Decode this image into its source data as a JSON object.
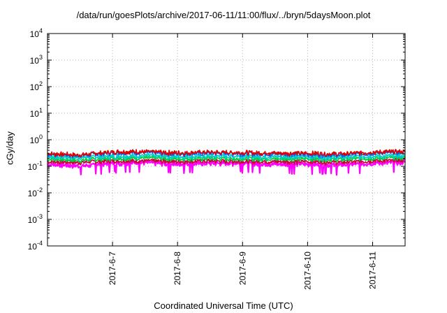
{
  "chart_data": {
    "type": "line",
    "title": "/data/run/goesPlots/archive/2017-06-11/11:00/flux/../bryn/5daysMoon.plot",
    "xlabel": "Coordinated Universal Time (UTC)",
    "ylabel": "cGy/day",
    "yscale": "log",
    "ylim": [
      0.0001,
      10000
    ],
    "y_ticks": [
      {
        "base": "10",
        "exp": "-4"
      },
      {
        "base": "10",
        "exp": "-3"
      },
      {
        "base": "10",
        "exp": "-2"
      },
      {
        "base": "10",
        "exp": "-1"
      },
      {
        "base": "10",
        "exp": "0"
      },
      {
        "base": "10",
        "exp": "1"
      },
      {
        "base": "10",
        "exp": "2"
      },
      {
        "base": "10",
        "exp": "3"
      },
      {
        "base": "10",
        "exp": "4"
      }
    ],
    "xlim": [
      "2017-06-06T00:00",
      "2017-06-11T12:00"
    ],
    "x_ticks": [
      "2017-6-7",
      "2017-6-8",
      "2017-6-9",
      "2017-6-10",
      "2017-6-11"
    ],
    "grid": true,
    "series": [
      {
        "color": "#ff00ff",
        "level": 0.13,
        "x": [
          "2017-06-06T00:00",
          "2017-06-06T12:00",
          "2017-06-07T00:00",
          "2017-06-07T12:00",
          "2017-06-08T00:00",
          "2017-06-08T12:00",
          "2017-06-09T00:00",
          "2017-06-09T12:00",
          "2017-06-10T00:00",
          "2017-06-10T12:00",
          "2017-06-11T00:00",
          "2017-06-11T12:00"
        ],
        "values": [
          0.12,
          0.1,
          0.13,
          0.14,
          0.12,
          0.13,
          0.13,
          0.12,
          0.12,
          0.11,
          0.13,
          0.14
        ]
      },
      {
        "color": "#cc0033",
        "level": 0.15,
        "x": [
          "2017-06-06T00:00",
          "2017-06-06T12:00",
          "2017-06-07T00:00",
          "2017-06-07T12:00",
          "2017-06-08T00:00",
          "2017-06-08T12:00",
          "2017-06-09T00:00",
          "2017-06-09T12:00",
          "2017-06-10T00:00",
          "2017-06-10T12:00",
          "2017-06-11T00:00",
          "2017-06-11T12:00"
        ],
        "values": [
          0.15,
          0.14,
          0.16,
          0.16,
          0.15,
          0.16,
          0.15,
          0.15,
          0.15,
          0.14,
          0.16,
          0.17
        ]
      },
      {
        "color": "#00cc44",
        "level": 0.19,
        "x": [
          "2017-06-06T00:00",
          "2017-06-06T12:00",
          "2017-06-07T00:00",
          "2017-06-07T12:00",
          "2017-06-08T00:00",
          "2017-06-08T12:00",
          "2017-06-09T00:00",
          "2017-06-09T12:00",
          "2017-06-10T00:00",
          "2017-06-10T12:00",
          "2017-06-11T00:00",
          "2017-06-11T12:00"
        ],
        "values": [
          0.19,
          0.17,
          0.2,
          0.21,
          0.19,
          0.2,
          0.19,
          0.19,
          0.19,
          0.18,
          0.2,
          0.21
        ]
      },
      {
        "color": "#00cccc",
        "level": 0.23,
        "x": [
          "2017-06-06T00:00",
          "2017-06-06T12:00",
          "2017-06-07T00:00",
          "2017-06-07T12:00",
          "2017-06-08T00:00",
          "2017-06-08T12:00",
          "2017-06-09T00:00",
          "2017-06-09T12:00",
          "2017-06-10T00:00",
          "2017-06-10T12:00",
          "2017-06-11T00:00",
          "2017-06-11T12:00"
        ],
        "values": [
          0.23,
          0.21,
          0.24,
          0.25,
          0.23,
          0.24,
          0.24,
          0.23,
          0.23,
          0.22,
          0.24,
          0.25
        ]
      },
      {
        "color": "#0066ff",
        "level": 0.29,
        "x": [
          "2017-06-06T00:00",
          "2017-06-06T12:00",
          "2017-06-07T00:00",
          "2017-06-07T12:00",
          "2017-06-08T00:00",
          "2017-06-08T12:00",
          "2017-06-09T00:00",
          "2017-06-09T12:00",
          "2017-06-10T00:00",
          "2017-06-10T12:00",
          "2017-06-11T00:00",
          "2017-06-11T12:00"
        ],
        "values": [
          0.28,
          0.25,
          0.32,
          0.33,
          0.29,
          0.31,
          0.3,
          0.29,
          0.28,
          0.26,
          0.31,
          0.33
        ]
      },
      {
        "color": "#dd0000",
        "level": 0.32,
        "x": [
          "2017-06-06T00:00",
          "2017-06-06T12:00",
          "2017-06-07T00:00",
          "2017-06-07T12:00",
          "2017-06-08T00:00",
          "2017-06-08T12:00",
          "2017-06-09T00:00",
          "2017-06-09T12:00",
          "2017-06-10T00:00",
          "2017-06-10T12:00",
          "2017-06-11T00:00",
          "2017-06-11T12:00"
        ],
        "values": [
          0.3,
          0.27,
          0.35,
          0.36,
          0.32,
          0.34,
          0.33,
          0.32,
          0.31,
          0.29,
          0.34,
          0.36
        ]
      }
    ]
  }
}
